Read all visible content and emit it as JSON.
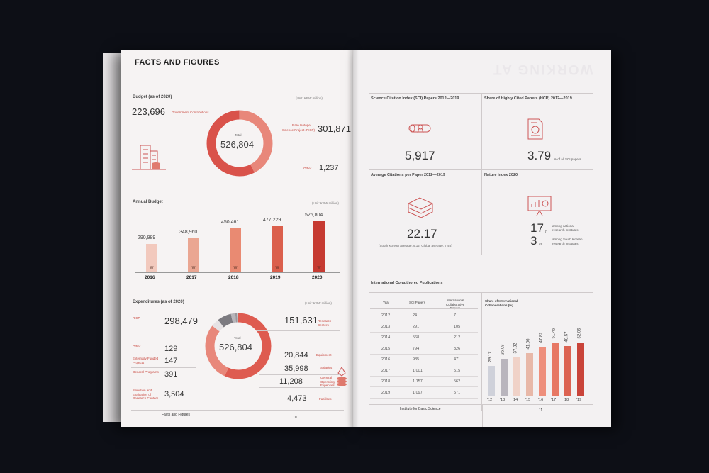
{
  "left": {
    "title": "FACTS AND FIGURES",
    "budget": {
      "heading": "Budget (as of 2020)",
      "unit": "(Unit: KRW million)",
      "gov_value": "223,696",
      "gov_label": "Government Contributions",
      "total_label": "Total",
      "total_value": "526,804",
      "risp_label_1": "Rare Isotope",
      "risp_label_2": "Science Project (RISP)",
      "risp_value": "301,871",
      "other_label": "Other",
      "other_value": "1,237"
    },
    "annual": {
      "heading": "Annual Budget",
      "unit": "(Unit: KRW million)",
      "currency_mark": "W",
      "bars": [
        {
          "year": "2016",
          "value": "290,989",
          "amount": 290989,
          "color": "#f2c9bd"
        },
        {
          "year": "2017",
          "value": "348,960",
          "amount": 348960,
          "color": "#eaa692"
        },
        {
          "year": "2018",
          "value": "450,461",
          "amount": 450461,
          "color": "#e98a72"
        },
        {
          "year": "2019",
          "value": "477,229",
          "amount": 477229,
          "color": "#db5f4c"
        },
        {
          "year": "2020",
          "value": "526,804",
          "amount": 526804,
          "color": "#c63a31"
        }
      ]
    },
    "expenditures": {
      "heading": "Expenditures (as of 2020)",
      "unit": "(Unit: KRW million)",
      "total_label": "Total",
      "total_value": "526,804",
      "left_items": [
        {
          "label": "RISP",
          "value": "298,479"
        },
        {
          "label": "Other",
          "value": "129"
        },
        {
          "label": "Externally Funded Projects",
          "value": "147"
        },
        {
          "label": "General Programs",
          "value": "391"
        },
        {
          "label": "Selection and Evaluation of Research Centers",
          "value": "3,504"
        }
      ],
      "right_items": [
        {
          "label": "Research Centers",
          "value": "151,631"
        },
        {
          "label": "Equipment",
          "value": "20,844"
        },
        {
          "label": "Salaries",
          "value": "35,998"
        },
        {
          "label": "General Operating Expenses",
          "value": "11,208"
        },
        {
          "label": "Facilities",
          "value": "4,473"
        }
      ]
    },
    "footer": {
      "label": "Facts and Figures",
      "page": "10"
    }
  },
  "right": {
    "watermark": "WORKING AT",
    "sci": {
      "heading": "Science Citation Index (SCI) Papers 2012—2019",
      "value": "5,917"
    },
    "hcp": {
      "heading": "Share of Highly Cited Papers (HCP) 2012—2019",
      "value": "3.79",
      "suffix": "% of all SCI papers"
    },
    "citations": {
      "heading": "Average Citations per Paper 2012—2019",
      "value": "22.17",
      "note": "(South Korean average: 9.12, Global average: 7.46)"
    },
    "nature": {
      "heading": "Nature Index 2020",
      "rank1": "17",
      "rank1_suffix": "th",
      "rank1_text_1": "among national",
      "rank1_text_2": "research institutes",
      "rank2": "3",
      "rank2_suffix": "rd",
      "rank2_text_1": "among South Korean",
      "rank2_text_2": "research institutes"
    },
    "intl": {
      "heading": "International Co-authored Publications",
      "columns": [
        "Year",
        "SCI Papers",
        "International Collaborative Papers"
      ],
      "rows": [
        [
          "2012",
          "24",
          "7"
        ],
        [
          "2013",
          "291",
          "105"
        ],
        [
          "2014",
          "568",
          "212"
        ],
        [
          "2015",
          "794",
          "326"
        ],
        [
          "2016",
          "985",
          "471"
        ],
        [
          "2017",
          "1,001",
          "515"
        ],
        [
          "2018",
          "1,157",
          "562"
        ],
        [
          "2019",
          "1,097",
          "571"
        ]
      ],
      "share_heading_1": "Share of International",
      "share_heading_2": "Collaborations (%)"
    },
    "footer": {
      "label": "Institute for Basic Science",
      "page": "11"
    }
  },
  "chart_data": [
    {
      "type": "pie",
      "title": "Budget (as of 2020)",
      "categories": [
        "Government Contributions",
        "Rare Isotope Science Project (RISP)",
        "Other"
      ],
      "values": [
        223696,
        301871,
        1237
      ],
      "colors": [
        "#e8877a",
        "#d9524a",
        "#f0b9b0"
      ]
    },
    {
      "type": "bar",
      "title": "Annual Budget",
      "categories": [
        "2016",
        "2017",
        "2018",
        "2019",
        "2020"
      ],
      "values": [
        290989,
        348960,
        450461,
        477229,
        526804
      ]
    },
    {
      "type": "pie",
      "title": "Expenditures (as of 2020)",
      "categories": [
        "RISP",
        "Research Centers",
        "Equipment",
        "Salaries",
        "General Operating Expenses",
        "Facilities",
        "Selection and Evaluation of Research Centers",
        "General Programs",
        "Externally Funded Projects",
        "Other"
      ],
      "values": [
        298479,
        151631,
        20844,
        35998,
        11208,
        4473,
        3504,
        391,
        147,
        129
      ],
      "colors": [
        "#de5b50",
        "#e8877a",
        "#e6e2e4",
        "#7c7a80",
        "#b8b5ba",
        "#9a979c",
        "#cfcccf",
        "#d8d5d8",
        "#e0dde0",
        "#e9e6e9"
      ]
    },
    {
      "type": "bar",
      "title": "Share of International Collaborations (%)",
      "categories": [
        "'12",
        "'13",
        "'14",
        "'15",
        "'16",
        "'17",
        "'18",
        "'19"
      ],
      "values": [
        29.17,
        36.08,
        37.32,
        41.06,
        47.82,
        51.45,
        48.57,
        52.05
      ],
      "labels": [
        "29.17",
        "36.08",
        "37.32",
        "41.06",
        "47.82",
        "51.45",
        "48.57",
        "52.05"
      ],
      "colors": [
        "#cfd1da",
        "#b9b5bd",
        "#f0d2c8",
        "#e8b8a8",
        "#ee8f7c",
        "#e77864",
        "#dc6352",
        "#c9443a"
      ]
    }
  ]
}
